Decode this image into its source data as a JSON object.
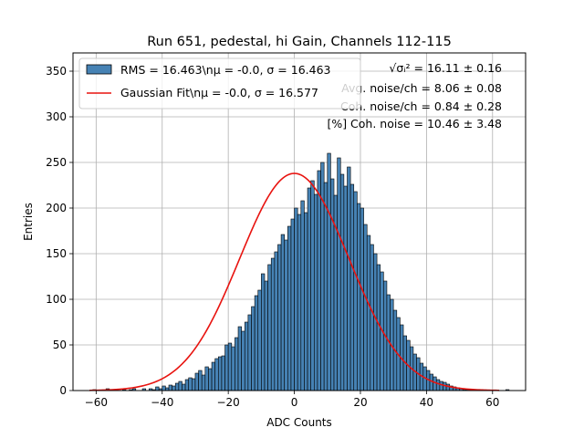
{
  "chart_data": {
    "type": "bar",
    "title": "Run 651, pedestal, hi Gain, Channels 112-115",
    "xlabel": "ADC Counts",
    "ylabel": "Entries",
    "xlim": [
      -67,
      70
    ],
    "ylim": [
      0,
      370
    ],
    "xticks": [
      -60,
      -40,
      -20,
      0,
      20,
      40,
      60
    ],
    "yticks": [
      0,
      50,
      100,
      150,
      200,
      250,
      300,
      350
    ],
    "grid": true,
    "legend_position": "top-left",
    "legend": [
      {
        "label": "RMS = 16.463\\nμ = -0.0, σ = 16.463",
        "kind": "histogram",
        "color": "#4682b4"
      },
      {
        "label": "Gaussian Fit\\nμ = -0.0, σ = 16.577",
        "kind": "line",
        "color": "#e8130f"
      }
    ],
    "annotations": [
      {
        "label": "√σᵢ² = 16.11 ± 0.16"
      },
      {
        "label": "Avg. noise/ch = 8.06 ± 0.08"
      },
      {
        "label": "Coh. noise/ch = 0.84 ± 0.28"
      },
      {
        "label": "[%] Coh. noise = 10.46 ± 3.48"
      }
    ],
    "histogram": {
      "bin_start": -61,
      "bin_width": 1,
      "counts": [
        1,
        0,
        0,
        0,
        2,
        0,
        1,
        0,
        0,
        1,
        0,
        1,
        2,
        0,
        0,
        2,
        0,
        2,
        1,
        4,
        2,
        5,
        3,
        6,
        5,
        8,
        10,
        7,
        12,
        14,
        13,
        19,
        22,
        17,
        26,
        24,
        31,
        35,
        37,
        38,
        50,
        52,
        48,
        58,
        70,
        65,
        75,
        83,
        92,
        104,
        110,
        128,
        120,
        138,
        145,
        152,
        160,
        171,
        165,
        180,
        188,
        200,
        193,
        208,
        195,
        222,
        230,
        215,
        241,
        250,
        228,
        260,
        232,
        214,
        255,
        237,
        224,
        245,
        226,
        218,
        205,
        200,
        182,
        170,
        160,
        150,
        138,
        130,
        120,
        105,
        100,
        88,
        80,
        72,
        60,
        55,
        48,
        40,
        36,
        30,
        26,
        22,
        18,
        15,
        12,
        10,
        9,
        7,
        5,
        4,
        3,
        2,
        1,
        1,
        1,
        0,
        1,
        0,
        0,
        0,
        0,
        0,
        0,
        0,
        0,
        1,
        0,
        0
      ]
    },
    "gaussian_fit": {
      "mu": -0.0,
      "sigma": 16.577,
      "amplitude": 238
    }
  }
}
